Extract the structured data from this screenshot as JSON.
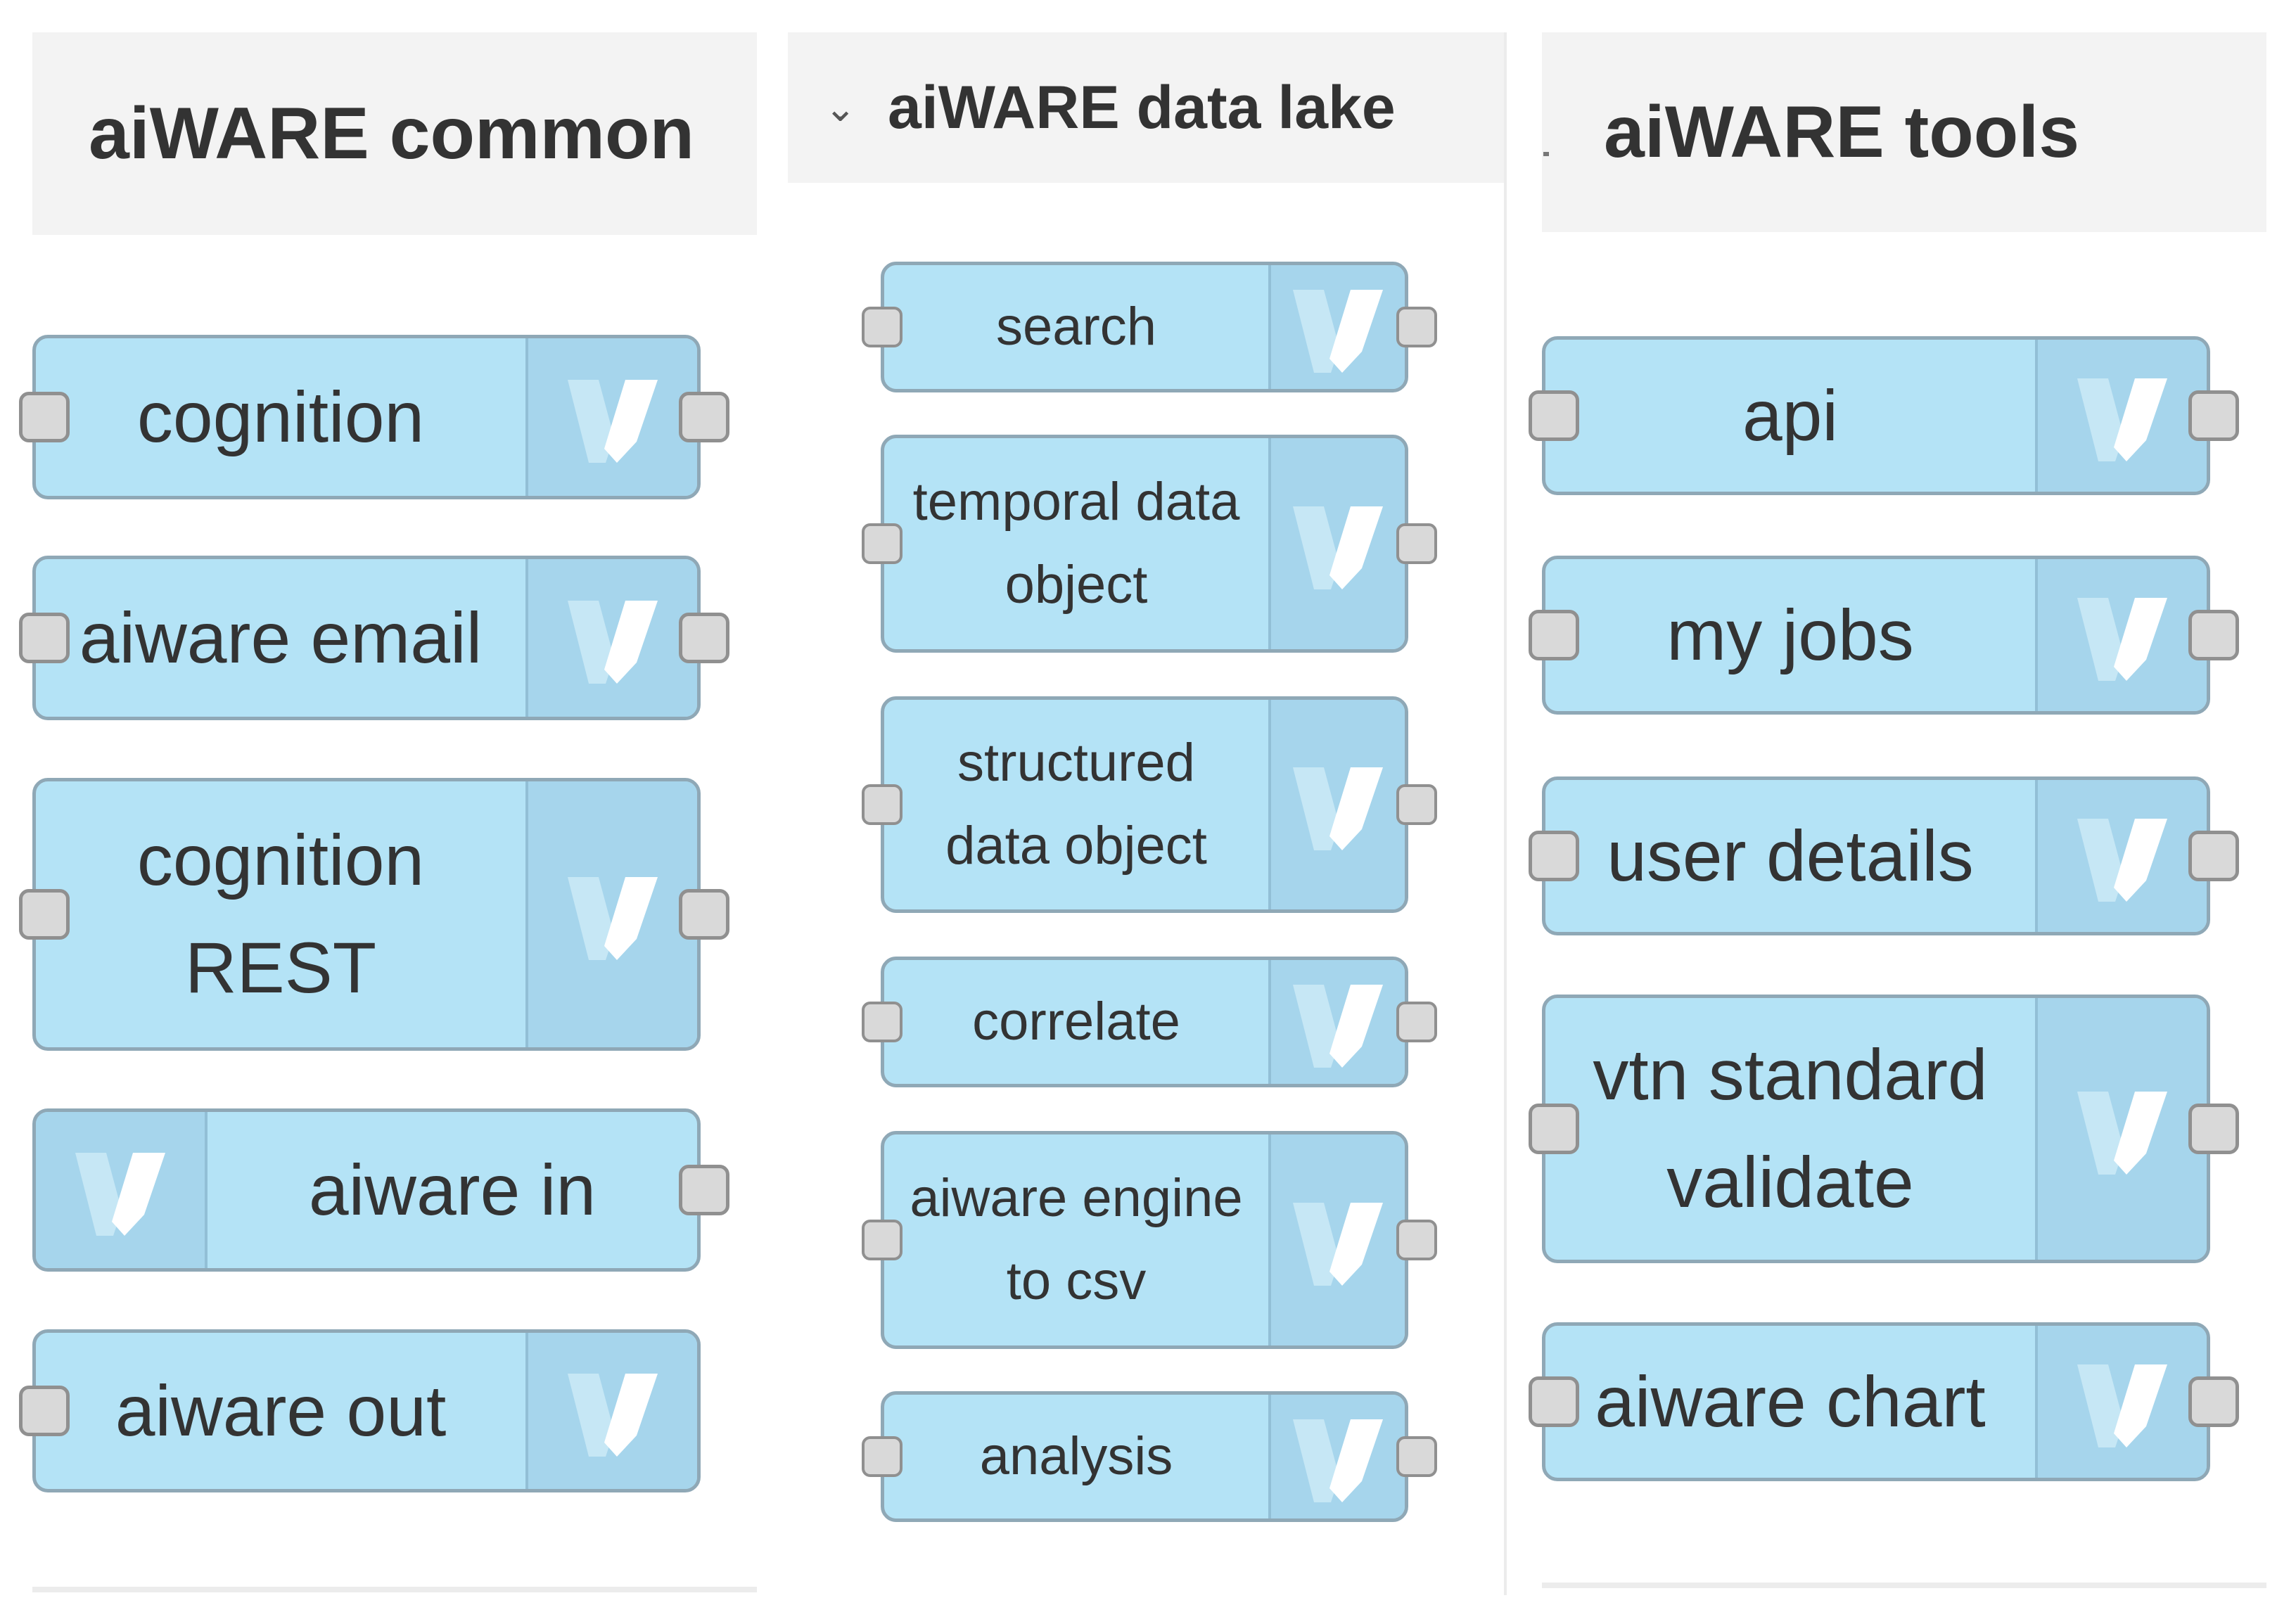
{
  "palette": {
    "node_fill": "#b4e3f6",
    "icon_fill": "#a6d5ec",
    "node_border": "#8fa8b6",
    "port_fill": "#d9d9d9",
    "header_fill": "#f3f3f3"
  },
  "icon": "veritone-v-icon",
  "panels": [
    {
      "title": "aiWARE common",
      "nodes": [
        {
          "label": "cognition"
        },
        {
          "label": "aiware email"
        },
        {
          "label": "cognition\nREST"
        },
        {
          "label": "aiware in"
        },
        {
          "label": "aiware out"
        }
      ]
    },
    {
      "title": "aiWARE data lake",
      "nodes": [
        {
          "label": "search"
        },
        {
          "label": "temporal data\nobject"
        },
        {
          "label": "structured\ndata object"
        },
        {
          "label": "correlate"
        },
        {
          "label": "aiware engine\nto csv"
        },
        {
          "label": "analysis"
        }
      ]
    },
    {
      "title": "aiWARE tools",
      "nodes": [
        {
          "label": "api"
        },
        {
          "label": "my jobs"
        },
        {
          "label": "user details"
        },
        {
          "label": "vtn standard\nvalidate"
        },
        {
          "label": "aiware chart"
        }
      ]
    }
  ]
}
